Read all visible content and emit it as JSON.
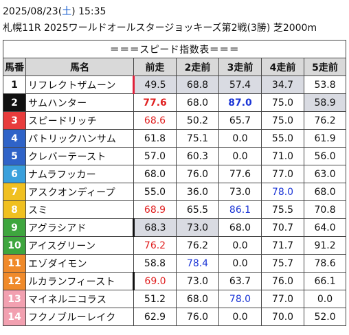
{
  "header": {
    "date": "2025/08/23",
    "weekday": "土",
    "time": "15:35",
    "race": "札幌11R 2025ワールドオールスタージョッキーズ第2戦(3勝) 芝2000m"
  },
  "table": {
    "title": "＝＝＝スピード指数表＝＝＝",
    "columns": [
      "馬番",
      "馬名",
      "前走",
      "2走前",
      "3走前",
      "4走前",
      "5走前"
    ],
    "frame_colors": {
      "1": "#ffffff",
      "2": "#111111",
      "3": "#e83c3c",
      "4": "#2f63c8",
      "5": "#2f63c8",
      "6": "#3aa0dc",
      "7": "#f0c020",
      "8": "#f0c020",
      "9": "#3ea63e",
      "10": "#3ea63e",
      "11": "#f08a2a",
      "12": "#f08a2a",
      "13": "#f2a0b0",
      "14": "#f2a0b0"
    },
    "rows": [
      {
        "no": "1",
        "name": "リフレクトザムーン",
        "v": [
          "49.5",
          "68.8",
          "57.4",
          "34.7",
          "53.8"
        ],
        "bg": [
          "g",
          "g",
          "g",
          "g",
          ""
        ],
        "fc": [
          "",
          "",
          "",
          "",
          ""
        ],
        "mark": "red"
      },
      {
        "no": "2",
        "name": "サムハンター",
        "v": [
          "77.6",
          "68.0",
          "87.0",
          "75.0",
          "58.9"
        ],
        "bg": [
          "",
          "",
          "",
          "",
          "g"
        ],
        "fc": [
          "rb",
          "",
          "bb",
          "",
          ""
        ],
        "mark": ""
      },
      {
        "no": "3",
        "name": "スピードリッチ",
        "v": [
          "68.6",
          "50.2",
          "65.7",
          "75.0",
          "76.2"
        ],
        "bg": [
          "",
          "",
          "",
          "",
          ""
        ],
        "fc": [
          "r",
          "",
          "",
          "",
          ""
        ],
        "mark": ""
      },
      {
        "no": "4",
        "name": "パトリックハンサム",
        "v": [
          "61.8",
          "75.1",
          "0.0",
          "55.0",
          "61.9"
        ],
        "bg": [
          "",
          "",
          "",
          "",
          ""
        ],
        "fc": [
          "",
          "",
          "",
          "",
          ""
        ],
        "mark": ""
      },
      {
        "no": "5",
        "name": "クレバーテースト",
        "v": [
          "57.0",
          "60.3",
          "0.0",
          "71.0",
          "56.0"
        ],
        "bg": [
          "",
          "",
          "",
          "",
          ""
        ],
        "fc": [
          "",
          "",
          "",
          "",
          ""
        ],
        "mark": ""
      },
      {
        "no": "6",
        "name": "ナムラフッカー",
        "v": [
          "68.0",
          "76.0",
          "77.6",
          "77.0",
          "63.0"
        ],
        "bg": [
          "",
          "",
          "",
          "",
          ""
        ],
        "fc": [
          "",
          "",
          "",
          "",
          ""
        ],
        "mark": ""
      },
      {
        "no": "7",
        "name": "アスクオンディープ",
        "v": [
          "55.0",
          "36.0",
          "73.0",
          "78.0",
          "68.0"
        ],
        "bg": [
          "",
          "",
          "",
          "",
          ""
        ],
        "fc": [
          "",
          "",
          "",
          "b",
          ""
        ],
        "mark": ""
      },
      {
        "no": "8",
        "name": "スミ",
        "v": [
          "68.9",
          "65.5",
          "86.1",
          "75.5",
          "70.8"
        ],
        "bg": [
          "",
          "",
          "",
          "",
          ""
        ],
        "fc": [
          "r",
          "",
          "b",
          "",
          ""
        ],
        "mark": ""
      },
      {
        "no": "9",
        "name": "アグラシアド",
        "v": [
          "68.3",
          "73.0",
          "68.0",
          "70.7",
          "64.0"
        ],
        "bg": [
          "g",
          "g",
          "",
          "",
          ""
        ],
        "fc": [
          "",
          "",
          "",
          "",
          ""
        ],
        "mark": "blk"
      },
      {
        "no": "10",
        "name": "アイスグリーン",
        "v": [
          "76.2",
          "76.2",
          "0.0",
          "71.7",
          "91.2"
        ],
        "bg": [
          "",
          "",
          "",
          "",
          ""
        ],
        "fc": [
          "r",
          "",
          "",
          "",
          ""
        ],
        "mark": ""
      },
      {
        "no": "11",
        "name": "エゾダイモン",
        "v": [
          "58.8",
          "78.4",
          "0.0",
          "75.7",
          "78.6"
        ],
        "bg": [
          "",
          "",
          "",
          "",
          ""
        ],
        "fc": [
          "",
          "b",
          "",
          "",
          ""
        ],
        "mark": ""
      },
      {
        "no": "12",
        "name": "ルカランフィースト",
        "v": [
          "69.0",
          "73.0",
          "63.7",
          "76.0",
          "66.1"
        ],
        "bg": [
          "",
          "",
          "",
          "",
          ""
        ],
        "fc": [
          "r",
          "",
          "",
          "",
          ""
        ],
        "mark": "blk"
      },
      {
        "no": "13",
        "name": "マイネルニコラス",
        "v": [
          "51.2",
          "68.0",
          "78.0",
          "77.0",
          "0.0"
        ],
        "bg": [
          "",
          "",
          "",
          "",
          ""
        ],
        "fc": [
          "",
          "",
          "b",
          "",
          ""
        ],
        "mark": ""
      },
      {
        "no": "14",
        "name": "フクノブルーレイク",
        "v": [
          "62.9",
          "76.0",
          "0.0",
          "70.0",
          "52.0"
        ],
        "bg": [
          "",
          "",
          "",
          "",
          ""
        ],
        "fc": [
          "",
          "",
          "",
          "",
          ""
        ],
        "mark": ""
      }
    ]
  }
}
